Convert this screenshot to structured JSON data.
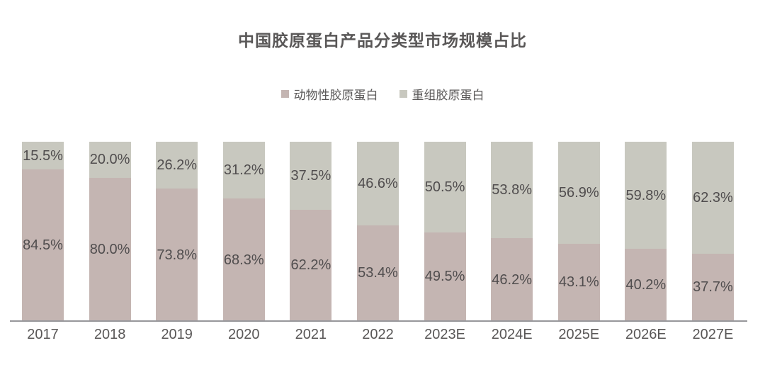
{
  "page": {
    "background": "#ffffff"
  },
  "chart_data": {
    "type": "bar",
    "variant": "stacked-100-percent",
    "title": "中国胶原蛋白产品分类型市场规模占比",
    "categories": [
      "2017",
      "2018",
      "2019",
      "2020",
      "2021",
      "2022",
      "2023E",
      "2024E",
      "2025E",
      "2026E",
      "2027E"
    ],
    "series": [
      {
        "name": "动物性胶原蛋白",
        "stack_position": "bottom",
        "color": "#c4b5b2",
        "values": [
          84.5,
          80.0,
          73.8,
          68.3,
          62.2,
          53.4,
          49.5,
          46.2,
          43.1,
          40.2,
          37.7
        ],
        "labels": [
          "84.5%",
          "80.0%",
          "73.8%",
          "68.3%",
          "62.2%",
          "53.4%",
          "49.5%",
          "46.2%",
          "43.1%",
          "40.2%",
          "37.7%"
        ]
      },
      {
        "name": "重组胶原蛋白",
        "stack_position": "top",
        "color": "#c8c8bf",
        "values": [
          15.5,
          20.0,
          26.2,
          31.2,
          37.5,
          46.6,
          50.5,
          53.8,
          56.9,
          59.8,
          62.3
        ],
        "labels": [
          "15.5%",
          "20.0%",
          "26.2%",
          "31.2%",
          "37.5%",
          "46.6%",
          "50.5%",
          "53.8%",
          "56.9%",
          "59.8%",
          "62.3%"
        ]
      }
    ],
    "ylim": [
      0,
      100
    ],
    "grid": false,
    "legend_position": "top-center",
    "title_color": "#595757",
    "label_color": "#504d4e",
    "axis_label_color": "#595757",
    "axis_line_color": "#97979b"
  }
}
